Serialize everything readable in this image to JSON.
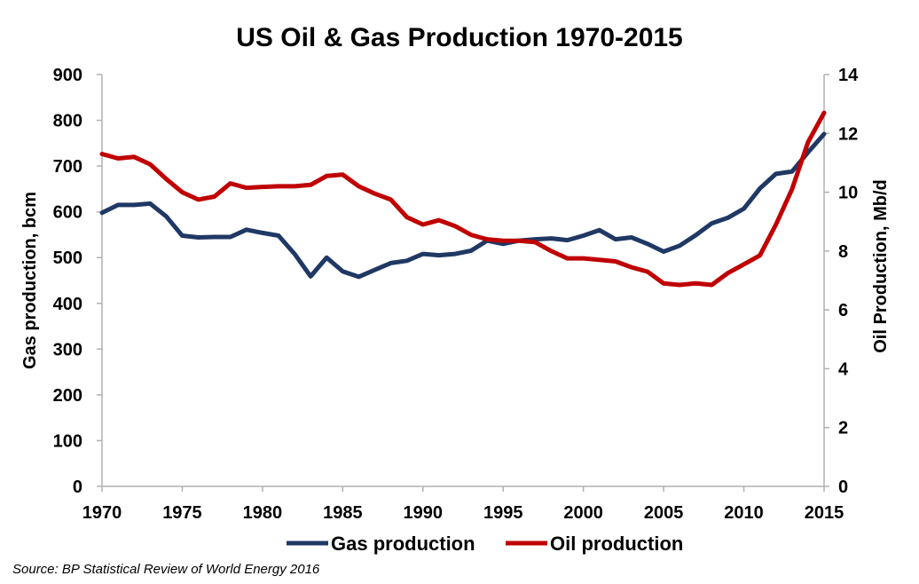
{
  "chart_data": {
    "type": "line",
    "title": "US Oil & Gas Production 1970-2015",
    "ylabel_left": "Gas production, bcm",
    "ylabel_right": "Oil Production, Mb/d",
    "xlim": [
      1970,
      2015
    ],
    "ylim_left": [
      0,
      900
    ],
    "ylim_right": [
      0,
      14
    ],
    "x_ticks": [
      "1970",
      "1975",
      "1980",
      "1985",
      "1990",
      "1995",
      "2000",
      "2005",
      "2010",
      "2015"
    ],
    "y_ticks_left": [
      "0",
      "100",
      "200",
      "300",
      "400",
      "500",
      "600",
      "700",
      "800",
      "900"
    ],
    "y_ticks_right": [
      "0",
      "2",
      "4",
      "6",
      "8",
      "10",
      "12",
      "14"
    ],
    "grid": false,
    "legend_position": "bottom",
    "x": [
      1970,
      1971,
      1972,
      1973,
      1974,
      1975,
      1976,
      1977,
      1978,
      1979,
      1980,
      1981,
      1982,
      1983,
      1984,
      1985,
      1986,
      1987,
      1988,
      1989,
      1990,
      1991,
      1992,
      1993,
      1994,
      1995,
      1996,
      1997,
      1998,
      1999,
      2000,
      2001,
      2002,
      2003,
      2004,
      2005,
      2006,
      2007,
      2008,
      2009,
      2010,
      2011,
      2012,
      2013,
      2014,
      2015
    ],
    "series": [
      {
        "name": "Gas production",
        "axis": "left",
        "color": "#1f3864",
        "values": [
          598,
          615,
          615,
          618,
          590,
          548,
          544,
          545,
          545,
          561,
          554,
          548,
          508,
          459,
          500,
          470,
          458,
          473,
          488,
          493,
          508,
          505,
          508,
          515,
          537,
          530,
          537,
          540,
          542,
          538,
          548,
          560,
          540,
          544,
          530,
          513,
          526,
          549,
          575,
          587,
          607,
          651,
          683,
          688,
          730,
          770
        ]
      },
      {
        "name": "Oil production",
        "axis": "right",
        "color": "#c00000",
        "values": [
          11.3,
          11.15,
          11.2,
          10.95,
          10.45,
          10.0,
          9.75,
          9.85,
          10.3,
          10.15,
          10.18,
          10.2,
          10.2,
          10.25,
          10.55,
          10.6,
          10.2,
          9.95,
          9.75,
          9.15,
          8.9,
          9.05,
          8.85,
          8.55,
          8.4,
          8.35,
          8.35,
          8.3,
          8.0,
          7.75,
          7.75,
          7.7,
          7.65,
          7.45,
          7.3,
          6.9,
          6.85,
          6.9,
          6.85,
          7.25,
          7.55,
          7.85,
          8.9,
          10.1,
          11.7,
          12.7
        ]
      }
    ]
  },
  "source": "Source: BP Statistical Review of World Energy 2016"
}
